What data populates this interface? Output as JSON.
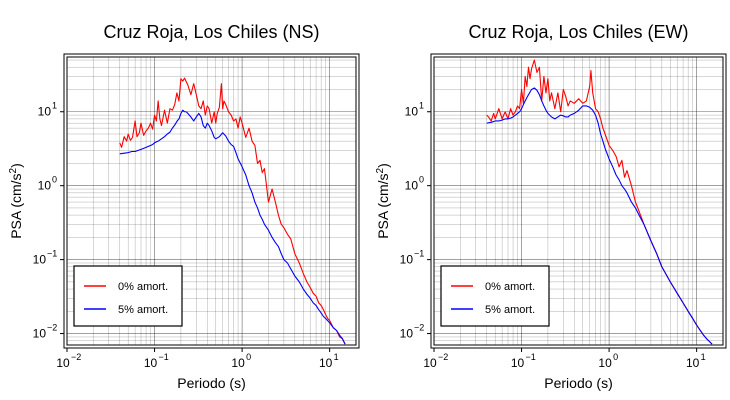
{
  "chart_data": [
    {
      "type": "line",
      "title": "Cruz Roja, Los Chiles (NS)",
      "xlabel": "Periodo (s)",
      "ylabel_main": "PSA (cm/s",
      "ylabel_sup": "2",
      "ylabel_tail": ")",
      "xscale": "log",
      "yscale": "log",
      "xlim": [
        0.01,
        20
      ],
      "ylim": [
        0.007,
        55
      ],
      "grid": true,
      "legend_position": "bottom-left",
      "x_ticks": [
        {
          "base": "10",
          "exp": "−2",
          "value": 0.01
        },
        {
          "base": "10",
          "exp": "−1",
          "value": 0.1
        },
        {
          "base": "10",
          "exp": "0",
          "value": 1
        },
        {
          "base": "10",
          "exp": "1",
          "value": 10
        }
      ],
      "y_ticks": [
        {
          "base": "10",
          "exp": "−2",
          "value": 0.01
        },
        {
          "base": "10",
          "exp": "−1",
          "value": 0.1
        },
        {
          "base": "10",
          "exp": "0",
          "value": 1
        },
        {
          "base": "10",
          "exp": "1",
          "value": 10
        }
      ],
      "series": [
        {
          "name": "0% amort.",
          "color": "#ff0000",
          "x": [
            0.04,
            0.042,
            0.045,
            0.048,
            0.05,
            0.053,
            0.056,
            0.06,
            0.063,
            0.067,
            0.07,
            0.075,
            0.08,
            0.085,
            0.09,
            0.095,
            0.1,
            0.105,
            0.11,
            0.115,
            0.12,
            0.13,
            0.14,
            0.15,
            0.16,
            0.17,
            0.18,
            0.19,
            0.2,
            0.21,
            0.22,
            0.24,
            0.26,
            0.28,
            0.3,
            0.32,
            0.34,
            0.36,
            0.38,
            0.4,
            0.42,
            0.45,
            0.48,
            0.5,
            0.52,
            0.55,
            0.58,
            0.6,
            0.62,
            0.65,
            0.7,
            0.75,
            0.8,
            0.85,
            0.9,
            0.95,
            1.0,
            1.1,
            1.2,
            1.3,
            1.4,
            1.5,
            1.6,
            1.7,
            1.8,
            1.9,
            2.0,
            2.2,
            2.4,
            2.6,
            2.8,
            3.0,
            3.3,
            3.6,
            4.0,
            4.5,
            5.0,
            5.5,
            6.0,
            6.5,
            7.0,
            7.5,
            8.0,
            8.5,
            9.0,
            9.5,
            10,
            11,
            12,
            13,
            14,
            15
          ],
          "y": [
            3.8,
            3.3,
            4.6,
            4.0,
            5.0,
            4.1,
            4.5,
            7.5,
            4.6,
            5.2,
            7.0,
            4.8,
            5.5,
            6.0,
            7.0,
            5.8,
            9.0,
            7.5,
            14.0,
            8.0,
            6.5,
            10.5,
            7.0,
            11.0,
            10.5,
            12.5,
            18.0,
            14.0,
            28.0,
            26.0,
            28.5,
            23.0,
            17.0,
            24.0,
            17.0,
            12.0,
            11.0,
            14.0,
            9.0,
            12.0,
            11.0,
            7.0,
            10.0,
            7.0,
            9.5,
            11.5,
            24.0,
            11.0,
            14.0,
            12.5,
            10.0,
            9.0,
            7.5,
            8.0,
            6.0,
            8.5,
            7.0,
            4.5,
            6.0,
            4.0,
            3.5,
            2.0,
            2.2,
            1.5,
            1.7,
            1.0,
            0.6,
            0.9,
            0.6,
            0.4,
            0.3,
            0.27,
            0.22,
            0.19,
            0.12,
            0.09,
            0.065,
            0.05,
            0.042,
            0.035,
            0.032,
            0.026,
            0.024,
            0.021,
            0.018,
            0.016,
            0.015,
            0.012,
            0.011,
            0.009,
            0.0085,
            0.0072
          ]
        },
        {
          "name": "5% amort.",
          "color": "#0000ff",
          "x": [
            0.04,
            0.045,
            0.05,
            0.055,
            0.06,
            0.065,
            0.07,
            0.075,
            0.08,
            0.085,
            0.09,
            0.095,
            0.1,
            0.11,
            0.12,
            0.13,
            0.14,
            0.15,
            0.16,
            0.17,
            0.18,
            0.19,
            0.2,
            0.21,
            0.22,
            0.23,
            0.24,
            0.26,
            0.28,
            0.3,
            0.32,
            0.34,
            0.36,
            0.38,
            0.4,
            0.42,
            0.45,
            0.48,
            0.5,
            0.55,
            0.6,
            0.65,
            0.7,
            0.75,
            0.8,
            0.85,
            0.9,
            1.0,
            1.1,
            1.2,
            1.3,
            1.4,
            1.5,
            1.6,
            1.7,
            1.8,
            2.0,
            2.2,
            2.4,
            2.6,
            2.8,
            3.0,
            3.3,
            3.6,
            4.0,
            4.5,
            5.0,
            5.5,
            6.0,
            6.5,
            7.0,
            7.5,
            8.0,
            8.5,
            9.0,
            10,
            11,
            12,
            13,
            14,
            15
          ],
          "y": [
            2.7,
            2.75,
            2.8,
            2.9,
            2.9,
            3.0,
            3.1,
            3.2,
            3.3,
            3.4,
            3.5,
            3.6,
            3.8,
            4.0,
            4.3,
            4.6,
            5.0,
            5.3,
            6.0,
            6.6,
            7.4,
            8.0,
            9.5,
            10.5,
            10.0,
            10.0,
            9.5,
            8.5,
            7.5,
            8.5,
            9.5,
            8.5,
            6.5,
            6.0,
            7.0,
            6.5,
            5.5,
            4.5,
            4.3,
            4.6,
            5.2,
            4.7,
            4.0,
            3.6,
            3.4,
            2.8,
            2.3,
            1.8,
            1.4,
            1.0,
            0.8,
            0.6,
            0.5,
            0.4,
            0.35,
            0.3,
            0.25,
            0.2,
            0.17,
            0.15,
            0.12,
            0.1,
            0.09,
            0.075,
            0.06,
            0.05,
            0.04,
            0.034,
            0.03,
            0.026,
            0.024,
            0.021,
            0.019,
            0.017,
            0.016,
            0.014,
            0.012,
            0.011,
            0.0095,
            0.0085,
            0.0072
          ]
        }
      ]
    },
    {
      "type": "line",
      "title": "Cruz Roja, Los Chiles (EW)",
      "xlabel": "Periodo (s)",
      "ylabel_main": "PSA (cm/s",
      "ylabel_sup": "2",
      "ylabel_tail": ")",
      "xscale": "log",
      "yscale": "log",
      "xlim": [
        0.01,
        20
      ],
      "ylim": [
        0.007,
        55
      ],
      "grid": true,
      "legend_position": "bottom-left",
      "x_ticks": [
        {
          "base": "10",
          "exp": "−2",
          "value": 0.01
        },
        {
          "base": "10",
          "exp": "−1",
          "value": 0.1
        },
        {
          "base": "10",
          "exp": "0",
          "value": 1
        },
        {
          "base": "10",
          "exp": "1",
          "value": 10
        }
      ],
      "y_ticks": [
        {
          "base": "10",
          "exp": "−2",
          "value": 0.01
        },
        {
          "base": "10",
          "exp": "−1",
          "value": 0.1
        },
        {
          "base": "10",
          "exp": "0",
          "value": 1
        },
        {
          "base": "10",
          "exp": "1",
          "value": 10
        }
      ],
      "series": [
        {
          "name": "0% amort.",
          "color": "#ff0000",
          "x": [
            0.04,
            0.042,
            0.045,
            0.048,
            0.05,
            0.055,
            0.06,
            0.065,
            0.07,
            0.075,
            0.08,
            0.085,
            0.09,
            0.095,
            0.1,
            0.105,
            0.11,
            0.115,
            0.12,
            0.125,
            0.13,
            0.14,
            0.15,
            0.16,
            0.17,
            0.18,
            0.19,
            0.2,
            0.21,
            0.22,
            0.24,
            0.26,
            0.28,
            0.3,
            0.32,
            0.34,
            0.36,
            0.4,
            0.45,
            0.5,
            0.55,
            0.6,
            0.62,
            0.65,
            0.7,
            0.75,
            0.8,
            0.85,
            0.9,
            1.0,
            1.1,
            1.2,
            1.3,
            1.4,
            1.5,
            1.6,
            1.8,
            2.0,
            2.2,
            2.5,
            3.0,
            3.5,
            4.0,
            5.0,
            6.0,
            7.0,
            8.0,
            9.0,
            10,
            11,
            12,
            13,
            14,
            15
          ],
          "y": [
            9.0,
            8.5,
            7.5,
            9.5,
            8.0,
            11.0,
            8.0,
            10.0,
            8.0,
            11.0,
            9.0,
            10.0,
            12.0,
            11.0,
            20.0,
            13.0,
            30.0,
            22.0,
            40.0,
            28.0,
            38.0,
            50.0,
            34.0,
            40.0,
            14.0,
            30.0,
            18.0,
            28.0,
            14.0,
            18.0,
            11.0,
            18.0,
            10.0,
            20.0,
            16.0,
            12.0,
            14.0,
            13.0,
            15.0,
            13.0,
            14.0,
            22.0,
            36.0,
            18.0,
            11.0,
            10.0,
            8.0,
            6.0,
            5.0,
            3.5,
            3.0,
            2.5,
            1.8,
            2.2,
            1.3,
            1.6,
            1.0,
            0.6,
            0.45,
            0.3,
            0.18,
            0.12,
            0.08,
            0.05,
            0.035,
            0.026,
            0.02,
            0.016,
            0.013,
            0.011,
            0.0095,
            0.0085,
            0.0078,
            0.0072
          ]
        },
        {
          "name": "5% amort.",
          "color": "#0000ff",
          "x": [
            0.04,
            0.045,
            0.05,
            0.055,
            0.06,
            0.065,
            0.07,
            0.075,
            0.08,
            0.085,
            0.09,
            0.095,
            0.1,
            0.105,
            0.11,
            0.115,
            0.12,
            0.13,
            0.14,
            0.15,
            0.16,
            0.17,
            0.18,
            0.19,
            0.2,
            0.22,
            0.24,
            0.26,
            0.28,
            0.3,
            0.32,
            0.34,
            0.36,
            0.4,
            0.45,
            0.5,
            0.55,
            0.6,
            0.65,
            0.7,
            0.75,
            0.8,
            0.85,
            0.9,
            1.0,
            1.1,
            1.2,
            1.3,
            1.4,
            1.5,
            1.6,
            1.8,
            2.0,
            2.2,
            2.5,
            3.0,
            3.5,
            4.0,
            5.0,
            6.0,
            7.0,
            8.0,
            9.0,
            10,
            11,
            12,
            13,
            14,
            15
          ],
          "y": [
            7.0,
            7.2,
            7.5,
            7.5,
            7.7,
            8.0,
            8.0,
            8.2,
            8.5,
            9.0,
            9.5,
            10.0,
            11.0,
            12.5,
            14.0,
            15.5,
            17.0,
            20.0,
            21.0,
            19.5,
            17.0,
            14.0,
            12.0,
            10.5,
            9.5,
            8.5,
            8.0,
            8.5,
            9.0,
            8.8,
            8.5,
            8.5,
            9.0,
            9.5,
            10.5,
            12.0,
            12.0,
            11.5,
            10.5,
            9.0,
            7.0,
            5.0,
            4.0,
            3.2,
            2.3,
            1.8,
            1.4,
            1.2,
            1.0,
            0.9,
            0.8,
            0.6,
            0.5,
            0.4,
            0.3,
            0.18,
            0.12,
            0.08,
            0.05,
            0.035,
            0.026,
            0.02,
            0.016,
            0.013,
            0.011,
            0.0095,
            0.0085,
            0.0078,
            0.0072
          ]
        }
      ]
    }
  ]
}
